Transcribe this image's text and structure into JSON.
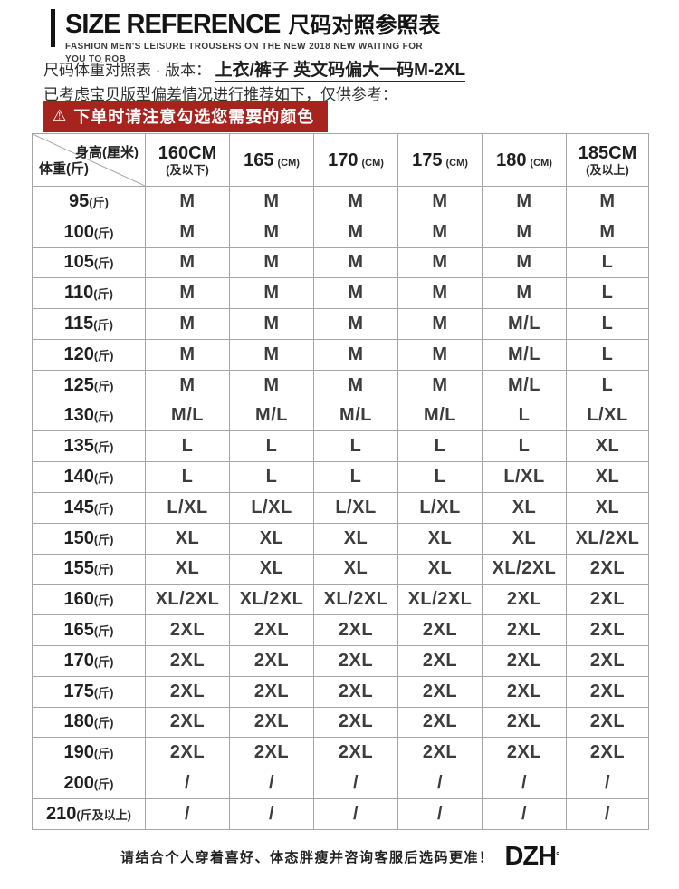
{
  "header": {
    "title_en": "SIZE REFERENCE",
    "title_zh": "尺码对照参照表",
    "subtitle_line1": "FASHION MEN'S LEISURE TROUSERS ON THE NEW 2018 NEW WAITING FOR",
    "subtitle_line2": "YOU TO ROB",
    "meta_label": "尺码体重对照表 · 版本：",
    "meta_value": "上衣/裤子 英文码偏大一码M-2XL",
    "note": "已考虑宝贝版型偏差情况进行推荐如下，仅供参考：",
    "warning_icon": "⚠",
    "warning_text": "下单时请注意勾选您需要的颜色",
    "warning_bg": "#a7231e"
  },
  "table": {
    "corner_top": "身高(厘米)",
    "corner_bottom": "体重(斤)",
    "columns": [
      {
        "main": "160CM",
        "sub": "(及以下)",
        "stacked": true
      },
      {
        "main": "165",
        "sub": "(CM)",
        "stacked": false
      },
      {
        "main": "170",
        "sub": "(CM)",
        "stacked": false
      },
      {
        "main": "175",
        "sub": "(CM)",
        "stacked": false
      },
      {
        "main": "180",
        "sub": "(CM)",
        "stacked": false
      },
      {
        "main": "185CM",
        "sub": "(及以上)",
        "stacked": true
      }
    ],
    "rows": [
      {
        "num": "95",
        "unit": "(斤)",
        "sizes": [
          "M",
          "M",
          "M",
          "M",
          "M",
          "M"
        ]
      },
      {
        "num": "100",
        "unit": "(斤)",
        "sizes": [
          "M",
          "M",
          "M",
          "M",
          "M",
          "M"
        ]
      },
      {
        "num": "105",
        "unit": "(斤)",
        "sizes": [
          "M",
          "M",
          "M",
          "M",
          "M",
          "L"
        ]
      },
      {
        "num": "110",
        "unit": "(斤)",
        "sizes": [
          "M",
          "M",
          "M",
          "M",
          "M",
          "L"
        ]
      },
      {
        "num": "115",
        "unit": "(斤)",
        "sizes": [
          "M",
          "M",
          "M",
          "M",
          "M/L",
          "L"
        ]
      },
      {
        "num": "120",
        "unit": "(斤)",
        "sizes": [
          "M",
          "M",
          "M",
          "M",
          "M/L",
          "L"
        ]
      },
      {
        "num": "125",
        "unit": "(斤)",
        "sizes": [
          "M",
          "M",
          "M",
          "M",
          "M/L",
          "L"
        ]
      },
      {
        "num": "130",
        "unit": "(斤)",
        "sizes": [
          "M/L",
          "M/L",
          "M/L",
          "M/L",
          "L",
          "L/XL"
        ]
      },
      {
        "num": "135",
        "unit": "(斤)",
        "sizes": [
          "L",
          "L",
          "L",
          "L",
          "L",
          "XL"
        ]
      },
      {
        "num": "140",
        "unit": "(斤)",
        "sizes": [
          "L",
          "L",
          "L",
          "L",
          "L/XL",
          "XL"
        ]
      },
      {
        "num": "145",
        "unit": "(斤)",
        "sizes": [
          "L/XL",
          "L/XL",
          "L/XL",
          "L/XL",
          "XL",
          "XL"
        ]
      },
      {
        "num": "150",
        "unit": "(斤)",
        "sizes": [
          "XL",
          "XL",
          "XL",
          "XL",
          "XL",
          "XL/2XL"
        ]
      },
      {
        "num": "155",
        "unit": "(斤)",
        "sizes": [
          "XL",
          "XL",
          "XL",
          "XL",
          "XL/2XL",
          "2XL"
        ]
      },
      {
        "num": "160",
        "unit": "(斤)",
        "sizes": [
          "XL/2XL",
          "XL/2XL",
          "XL/2XL",
          "XL/2XL",
          "2XL",
          "2XL"
        ]
      },
      {
        "num": "165",
        "unit": "(斤)",
        "sizes": [
          "2XL",
          "2XL",
          "2XL",
          "2XL",
          "2XL",
          "2XL"
        ]
      },
      {
        "num": "170",
        "unit": "(斤)",
        "sizes": [
          "2XL",
          "2XL",
          "2XL",
          "2XL",
          "2XL",
          "2XL"
        ]
      },
      {
        "num": "175",
        "unit": "(斤)",
        "sizes": [
          "2XL",
          "2XL",
          "2XL",
          "2XL",
          "2XL",
          "2XL"
        ]
      },
      {
        "num": "180",
        "unit": "(斤)",
        "sizes": [
          "2XL",
          "2XL",
          "2XL",
          "2XL",
          "2XL",
          "2XL"
        ]
      },
      {
        "num": "190",
        "unit": "(斤)",
        "sizes": [
          "2XL",
          "2XL",
          "2XL",
          "2XL",
          "2XL",
          "2XL"
        ]
      },
      {
        "num": "200",
        "unit": "(斤)",
        "sizes": [
          "/",
          "/",
          "/",
          "/",
          "/",
          "/"
        ]
      },
      {
        "num": "210",
        "unit": "(斤及以上)",
        "sizes": [
          "/",
          "/",
          "/",
          "/",
          "/",
          "/"
        ]
      }
    ]
  },
  "footer": {
    "note": "请结合个人穿着喜好、体态胖瘦并咨询客服后选码更准！",
    "brand": "DZH",
    "brand_mark": "°"
  }
}
